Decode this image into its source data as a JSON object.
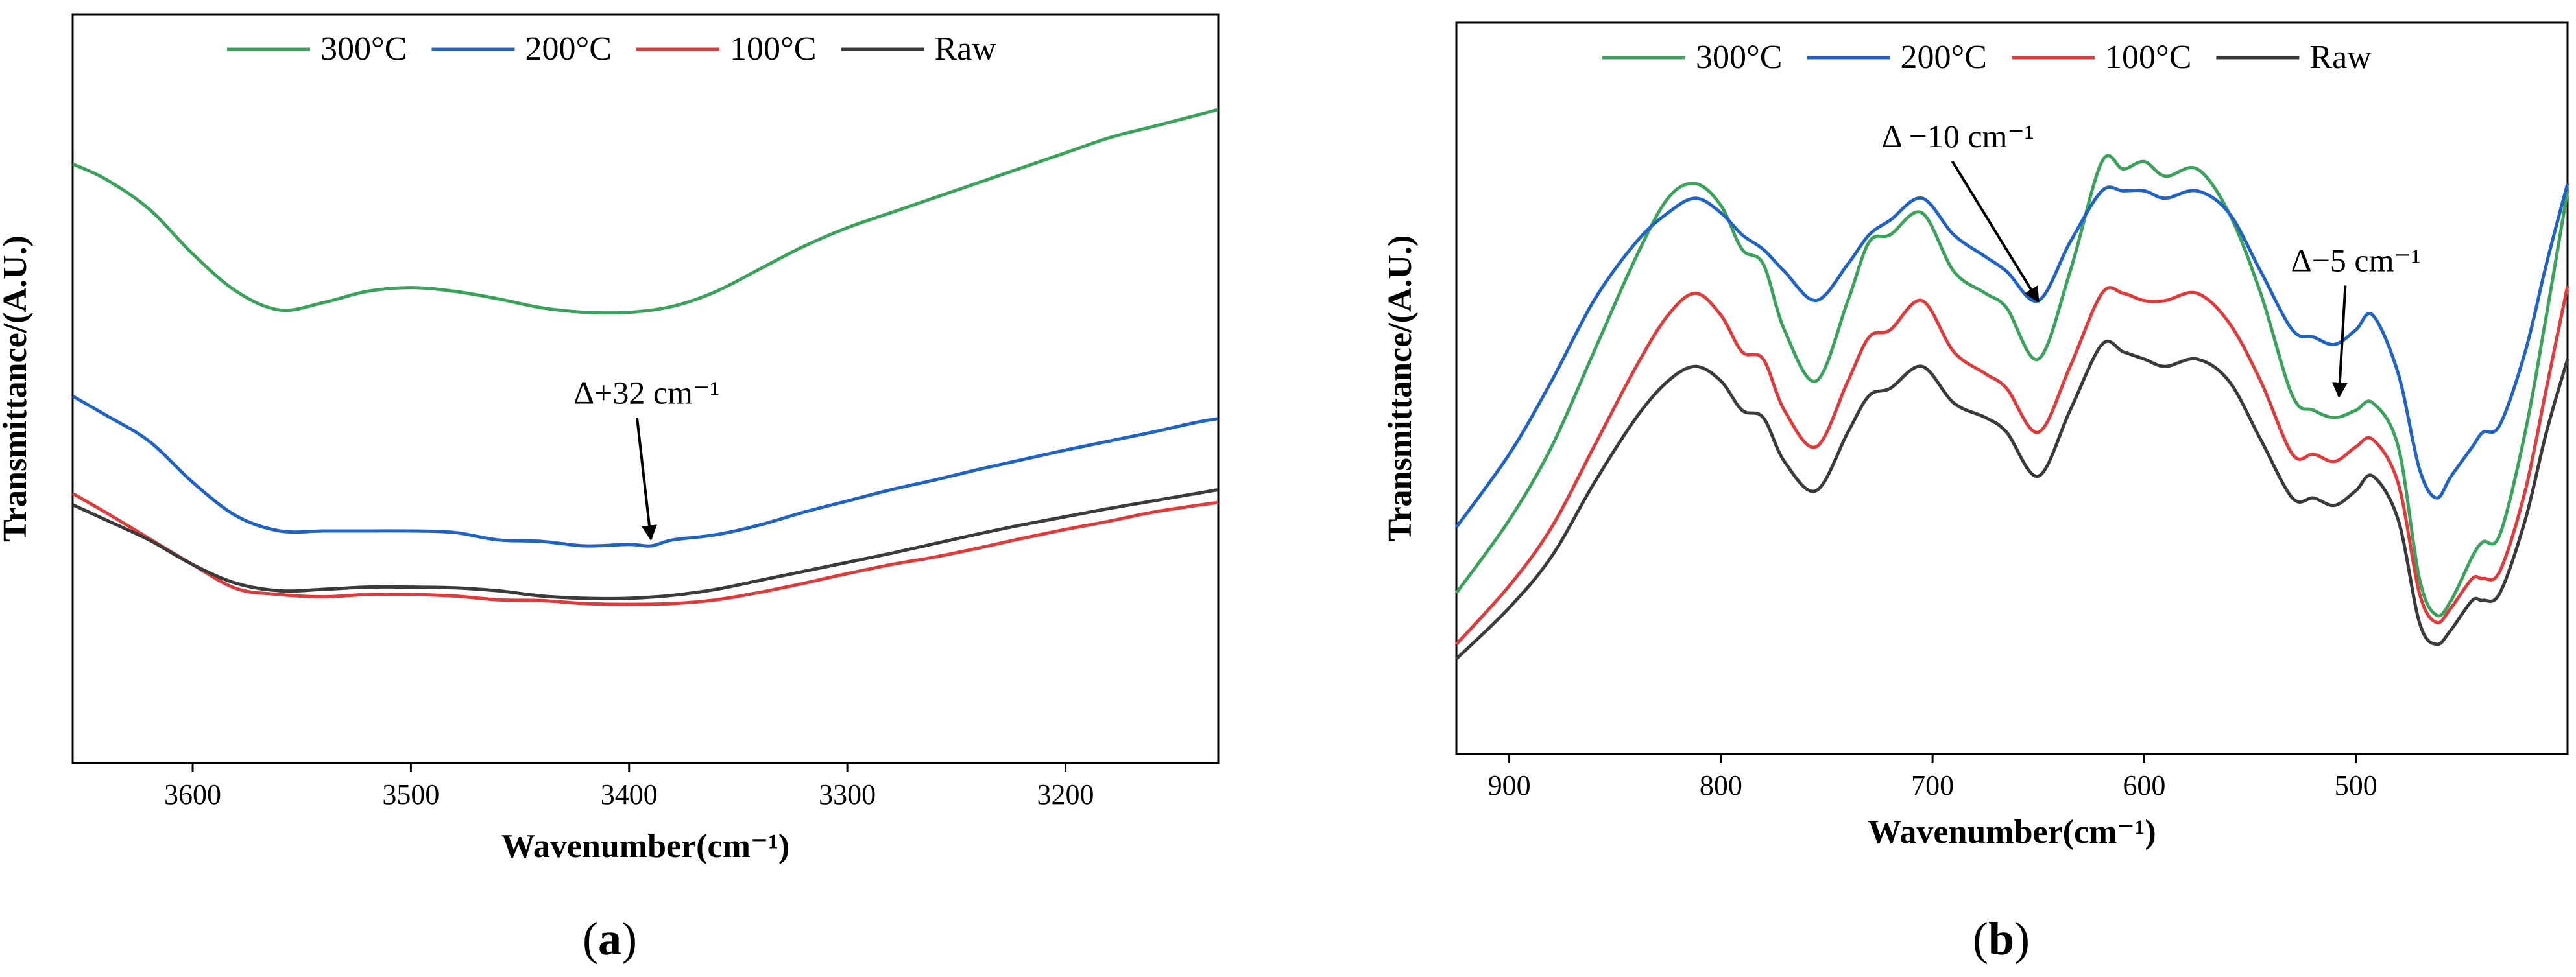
{
  "figure": {
    "captions": [
      "(a)",
      "(b)"
    ]
  },
  "colors": {
    "300": "#3aa35b",
    "200": "#1f63c9",
    "100": "#e23a3a",
    "raw": "#3b3b3b"
  },
  "chart_data": [
    {
      "type": "line",
      "panel": "a",
      "xlabel": "Wavenumber(cm⁻¹)",
      "ylabel": "Transmittance/(A.U.)",
      "xlim": [
        3655,
        3130
      ],
      "ylim": [
        0,
        100
      ],
      "xticks": [
        3600,
        3500,
        3400,
        3300,
        3200
      ],
      "xtick_labels": [
        "3600",
        "3500",
        "3400",
        "3300",
        "3200"
      ],
      "yticks_visible": false,
      "legend_position": "top",
      "series": [
        {
          "name": "300°C",
          "key": "300",
          "x": [
            3655,
            3640,
            3620,
            3600,
            3580,
            3560,
            3540,
            3520,
            3500,
            3480,
            3460,
            3440,
            3420,
            3400,
            3380,
            3360,
            3340,
            3320,
            3300,
            3280,
            3260,
            3240,
            3220,
            3200,
            3180,
            3160,
            3140,
            3130
          ],
          "y": [
            80,
            78,
            74,
            68,
            63,
            60.5,
            61.5,
            63,
            63.5,
            63,
            62,
            60.8,
            60.2,
            60.2,
            61,
            63,
            66,
            69,
            71.5,
            73.5,
            75.5,
            77.5,
            79.5,
            81.5,
            83.5,
            85,
            86.5,
            87.3
          ]
        },
        {
          "name": "200°C",
          "key": "200",
          "x": [
            3655,
            3640,
            3620,
            3600,
            3580,
            3560,
            3540,
            3520,
            3500,
            3480,
            3460,
            3440,
            3420,
            3400,
            3390,
            3380,
            3360,
            3340,
            3320,
            3300,
            3280,
            3260,
            3240,
            3220,
            3200,
            3180,
            3160,
            3140,
            3130
          ],
          "y": [
            49,
            46.5,
            43,
            37.5,
            33,
            31,
            31,
            31,
            31,
            30.8,
            29.8,
            29.6,
            29,
            29.2,
            29,
            29.8,
            30.5,
            31.8,
            33.5,
            35,
            36.5,
            37.8,
            39.2,
            40.5,
            41.8,
            43,
            44.2,
            45.5,
            46
          ]
        },
        {
          "name": "100°C",
          "key": "100",
          "x": [
            3655,
            3640,
            3620,
            3600,
            3580,
            3560,
            3540,
            3520,
            3500,
            3480,
            3460,
            3440,
            3420,
            3400,
            3380,
            3360,
            3340,
            3320,
            3300,
            3280,
            3260,
            3240,
            3220,
            3200,
            3180,
            3160,
            3140,
            3130
          ],
          "y": [
            36,
            33.5,
            30,
            26.5,
            23.3,
            22.5,
            22.2,
            22.5,
            22.5,
            22.3,
            21.8,
            21.7,
            21.3,
            21.2,
            21.3,
            21.8,
            22.8,
            24,
            25.3,
            26.5,
            27.5,
            28.7,
            30,
            31.2,
            32.3,
            33.5,
            34.4,
            34.8
          ]
        },
        {
          "name": "Raw",
          "key": "raw",
          "x": [
            3655,
            3640,
            3620,
            3600,
            3580,
            3560,
            3540,
            3520,
            3500,
            3480,
            3460,
            3440,
            3420,
            3400,
            3380,
            3360,
            3340,
            3320,
            3300,
            3280,
            3260,
            3240,
            3220,
            3200,
            3180,
            3160,
            3140,
            3130
          ],
          "y": [
            34.5,
            32.5,
            29.8,
            26.5,
            24,
            23,
            23.2,
            23.5,
            23.5,
            23.4,
            23,
            22.3,
            22,
            22,
            22.4,
            23.2,
            24.4,
            25.6,
            26.8,
            28,
            29.3,
            30.6,
            31.8,
            32.9,
            34,
            35,
            36,
            36.5
          ]
        }
      ],
      "annotations": [
        {
          "text": "Δ+32 cm⁻¹",
          "x": 3390,
          "y": 29,
          "text_x": 3392,
          "text_y": 48
        }
      ]
    },
    {
      "type": "line",
      "panel": "b",
      "xlabel": "Wavenumber(cm⁻¹)",
      "ylabel": "Transmittance/(A.U.)",
      "xlim": [
        925,
        400
      ],
      "ylim": [
        0,
        100
      ],
      "xticks": [
        900,
        800,
        700,
        600,
        500
      ],
      "xtick_labels": [
        "900",
        "800",
        "700",
        "600",
        "500"
      ],
      "yticks_visible": false,
      "legend_position": "top",
      "series": [
        {
          "name": "300°C",
          "key": "300",
          "x": [
            925,
            900,
            880,
            860,
            840,
            825,
            812,
            800,
            790,
            780,
            770,
            755,
            740,
            730,
            720,
            705,
            690,
            675,
            665,
            650,
            635,
            620,
            610,
            600,
            590,
            575,
            560,
            545,
            530,
            520,
            510,
            500,
            492,
            480,
            470,
            462,
            455,
            445,
            440,
            432,
            420,
            410,
            400
          ],
          "y": [
            22,
            32,
            42,
            55,
            68,
            76,
            78,
            75,
            69,
            67,
            58,
            51,
            62,
            70,
            71,
            74,
            66,
            63,
            61,
            54,
            66,
            81,
            80,
            81,
            79,
            80,
            74,
            63,
            49,
            47,
            46,
            47,
            48,
            42,
            24,
            19,
            21,
            27,
            29,
            30,
            44,
            60,
            77
          ]
        },
        {
          "name": "200°C",
          "key": "200",
          "x": [
            925,
            900,
            880,
            860,
            840,
            825,
            812,
            800,
            790,
            780,
            770,
            755,
            740,
            730,
            720,
            705,
            690,
            675,
            665,
            650,
            635,
            620,
            610,
            600,
            590,
            575,
            560,
            545,
            530,
            520,
            510,
            500,
            492,
            480,
            470,
            462,
            455,
            445,
            440,
            432,
            420,
            410,
            400
          ],
          "y": [
            31,
            41,
            51,
            62,
            70,
            74,
            76,
            74,
            71,
            69,
            66,
            62,
            67,
            71,
            73,
            76,
            71,
            68,
            66,
            62,
            70,
            77,
            77,
            77,
            76,
            77,
            74,
            66,
            58,
            57,
            56,
            58,
            60,
            52,
            39,
            35,
            38,
            42,
            44,
            45,
            55,
            67,
            78
          ]
        },
        {
          "name": "100°C",
          "key": "100",
          "x": [
            925,
            900,
            880,
            860,
            840,
            825,
            812,
            800,
            790,
            780,
            770,
            755,
            740,
            730,
            720,
            705,
            690,
            675,
            665,
            650,
            635,
            620,
            610,
            600,
            590,
            575,
            560,
            545,
            530,
            520,
            510,
            500,
            492,
            480,
            470,
            462,
            455,
            445,
            440,
            432,
            420,
            410,
            400
          ],
          "y": [
            15,
            23,
            31,
            42,
            53,
            60,
            63,
            60,
            55,
            54,
            47,
            42,
            51,
            57,
            58,
            62,
            55,
            52,
            50,
            44,
            53,
            63,
            63,
            62,
            62,
            63,
            59,
            51,
            41,
            41,
            40,
            42,
            43,
            37,
            22,
            18,
            20,
            24,
            24,
            25,
            36,
            50,
            64
          ]
        },
        {
          "name": "Raw",
          "key": "raw",
          "x": [
            925,
            900,
            880,
            860,
            840,
            825,
            812,
            800,
            790,
            780,
            770,
            755,
            740,
            730,
            720,
            705,
            690,
            675,
            665,
            650,
            635,
            620,
            610,
            600,
            590,
            575,
            560,
            545,
            530,
            520,
            510,
            500,
            492,
            480,
            470,
            462,
            455,
            445,
            440,
            432,
            420,
            410,
            400
          ],
          "y": [
            13,
            20,
            27,
            37,
            46,
            51,
            53,
            51,
            47,
            46,
            40,
            36,
            44,
            49,
            50,
            53,
            48,
            46,
            44,
            38,
            47,
            56,
            55,
            54,
            53,
            54,
            51,
            43,
            35,
            35,
            34,
            36,
            38,
            32,
            18,
            15,
            17,
            21,
            21,
            22,
            32,
            44,
            54
          ]
        }
      ],
      "annotations": [
        {
          "text": "Δ −10 cm⁻¹",
          "x": 650,
          "y": 61,
          "text_x": 688,
          "text_y": 83
        },
        {
          "text": "Δ−5 cm⁻¹",
          "x": 508,
          "y": 48,
          "text_x": 500,
          "text_y": 66
        }
      ]
    }
  ]
}
